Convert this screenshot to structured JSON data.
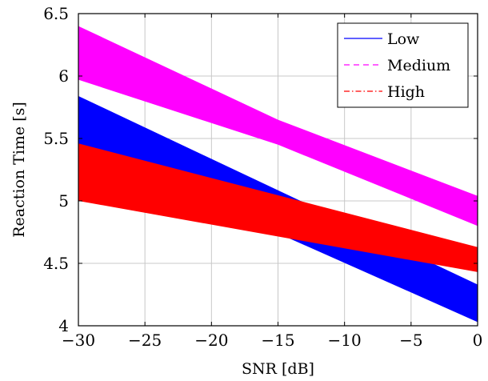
{
  "chart_data": {
    "type": "area",
    "title": "",
    "xlabel": "SNR [dB]",
    "ylabel": "Reaction Time [s]",
    "xlim": [
      -30,
      0
    ],
    "ylim": [
      4,
      6.5
    ],
    "xticks": [
      -30,
      -25,
      -20,
      -15,
      -10,
      -5,
      0
    ],
    "xtick_labels": [
      "−30",
      "−25",
      "−20",
      "−15",
      "−10",
      "−5",
      "0"
    ],
    "yticks": [
      4,
      4.5,
      5,
      5.5,
      6,
      6.5
    ],
    "ytick_labels": [
      "4",
      "4.5",
      "5",
      "5.5",
      "6",
      "6.5"
    ],
    "grid": true,
    "legend_position": "top-right",
    "series": [
      {
        "name": "Low",
        "color": "#0000ff",
        "line_style": "solid",
        "x": [
          -30,
          0
        ],
        "upper": [
          5.84,
          4.33
        ],
        "lower": [
          5.45,
          4.03
        ]
      },
      {
        "name": "Medium",
        "color": "#ff00ff",
        "line_style": "dashed",
        "x": [
          -30,
          -15,
          0
        ],
        "upper": [
          6.4,
          5.65,
          5.04
        ],
        "lower": [
          5.97,
          5.45,
          4.8
        ]
      },
      {
        "name": "High",
        "color": "#ff0000",
        "line_style": "dash-dot",
        "x": [
          -30,
          0
        ],
        "upper": [
          5.46,
          4.63
        ],
        "lower": [
          5.0,
          4.43
        ]
      }
    ]
  }
}
